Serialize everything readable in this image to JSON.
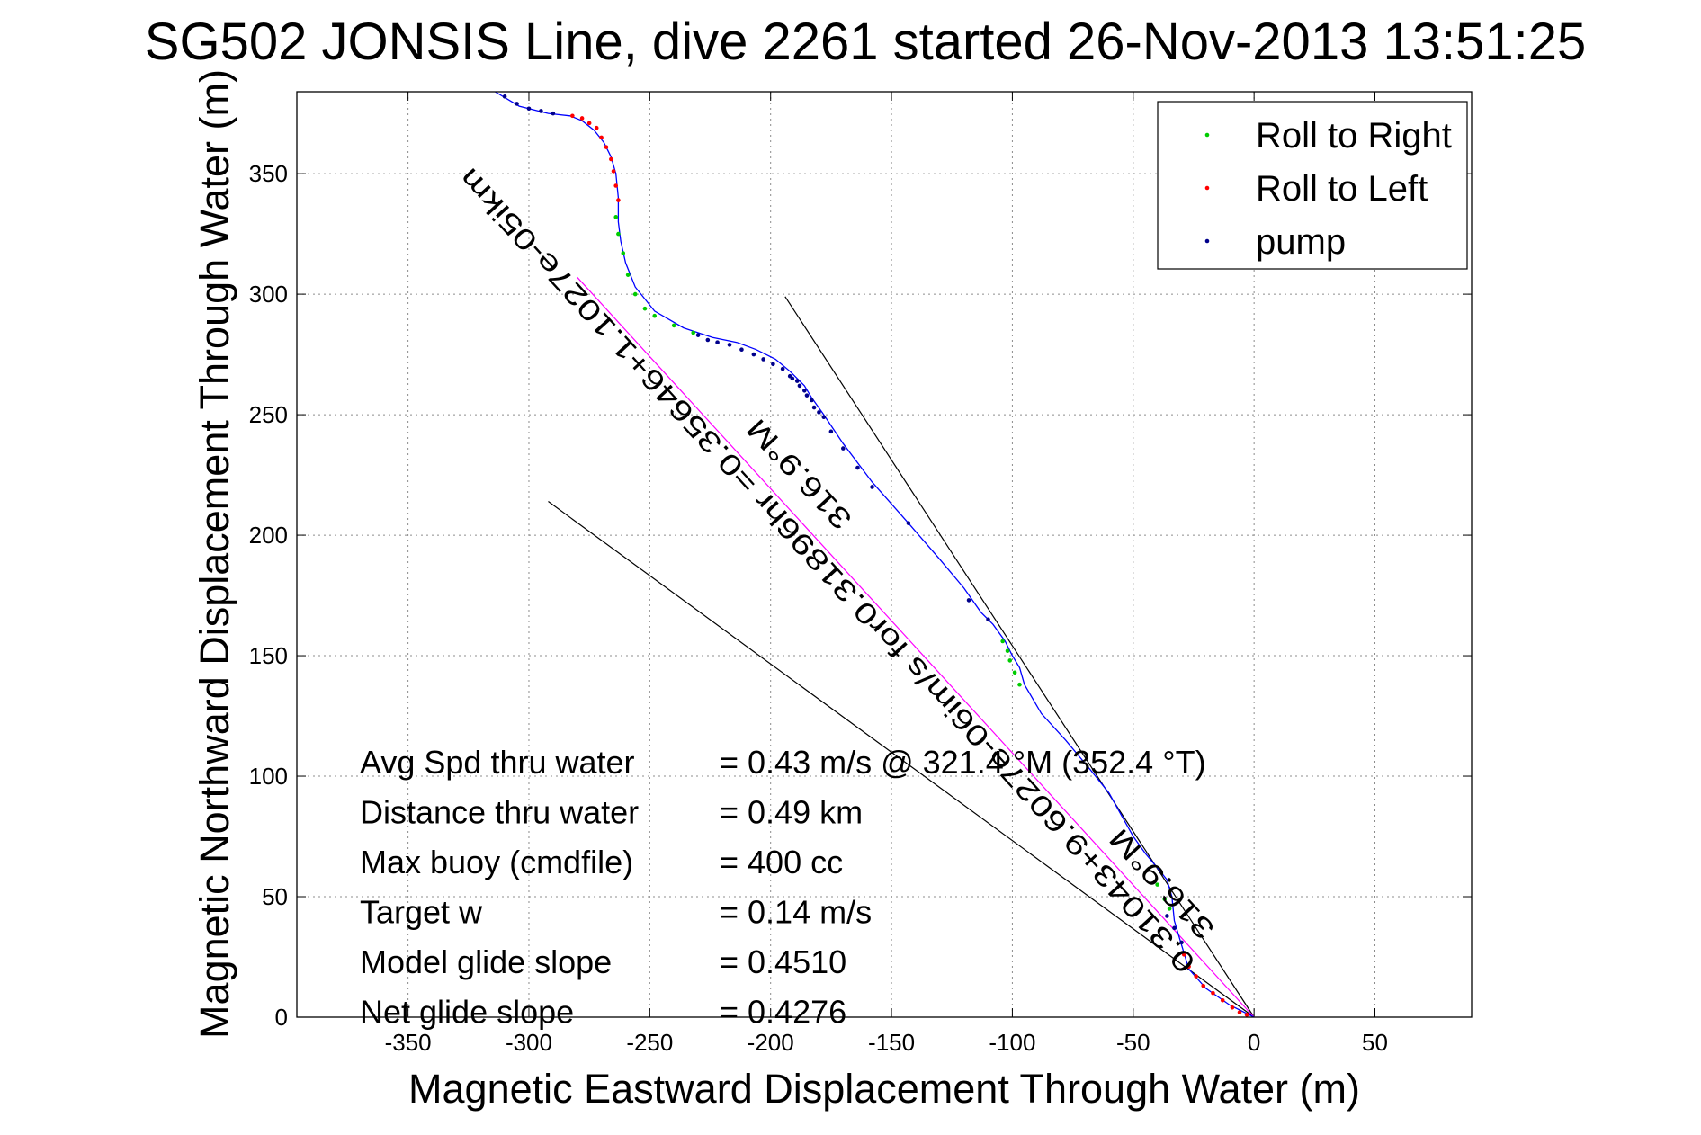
{
  "chart_data": {
    "type": "scatter",
    "title": "SG502 JONSIS Line, dive 2261 started 26-Nov-2013 13:51:25",
    "xlabel": "Magnetic Eastward Displacement Through Water (m)",
    "ylabel": "Magnetic Northward Displacement Through Water (m)",
    "xlim": [
      -396,
      90
    ],
    "ylim": [
      0,
      384
    ],
    "xticks": [
      -350,
      -300,
      -250,
      -200,
      -150,
      -100,
      -50,
      0,
      50
    ],
    "yticks": [
      0,
      50,
      100,
      150,
      200,
      250,
      300,
      350
    ],
    "grid": true,
    "legend_position": "top-right",
    "legend": [
      {
        "label": "Roll to Right",
        "color": "#00cc00"
      },
      {
        "label": "Roll to Left",
        "color": "#ff0000"
      },
      {
        "label": "pump",
        "color": "#00008b"
      }
    ],
    "track": {
      "color": "#0000ff",
      "x": [
        0,
        -10,
        -20,
        -27,
        -30,
        -33,
        -34,
        -36,
        -40,
        -45,
        -50,
        -55,
        -60,
        -68,
        -78,
        -88,
        -95,
        -97,
        -100,
        -103,
        -108,
        -113,
        -120,
        -130,
        -143,
        -158,
        -170,
        -178,
        -183,
        -186,
        -192,
        -198,
        -206,
        -214,
        -224,
        -236,
        -248,
        -256,
        -260,
        -262,
        -263,
        -263,
        -264,
        -266,
        -269,
        -273,
        -278,
        -283,
        -292,
        -304,
        -314
      ],
      "y": [
        0,
        5,
        12,
        20,
        30,
        40,
        50,
        57,
        62,
        68,
        75,
        84,
        93,
        103,
        115,
        126,
        138,
        145,
        150,
        156,
        163,
        168,
        178,
        190,
        205,
        222,
        238,
        250,
        257,
        262,
        268,
        273,
        277,
        280,
        282,
        286,
        293,
        303,
        313,
        322,
        330,
        340,
        350,
        357,
        363,
        368,
        372,
        374,
        375,
        378,
        384
      ]
    },
    "series": [
      {
        "name": "Roll to Right",
        "x": [
          -35,
          -37,
          -40,
          -97,
          -99,
          -101,
          -102,
          -104,
          -252,
          -256,
          -259,
          -261,
          -263,
          -264,
          -232,
          -240,
          -248
        ],
        "y": [
          45,
          49,
          55,
          138,
          143,
          148,
          152,
          156,
          294,
          300,
          308,
          317,
          325,
          332,
          284,
          287,
          291
        ]
      },
      {
        "name": "Roll to Left",
        "x": [
          -3,
          -6,
          -9,
          -13,
          -17,
          -21,
          -24,
          -27,
          -29,
          -263,
          -264,
          -265,
          -266,
          -268,
          -270,
          -272,
          -275,
          -278,
          -282
        ],
        "y": [
          1,
          2,
          4,
          7,
          10,
          13,
          17,
          21,
          26,
          339,
          345,
          351,
          356,
          361,
          365,
          369,
          371,
          373,
          374
        ]
      },
      {
        "name": "pump",
        "x": [
          -30,
          -33,
          -36,
          -110,
          -118,
          -143,
          -158,
          -164,
          -170,
          -175,
          -178,
          -180,
          -183,
          -186,
          -189,
          -192,
          -195,
          -199,
          -203,
          -207,
          -212,
          -217,
          -222,
          -226,
          -230,
          -182,
          -185,
          -188,
          -191,
          -290,
          -295,
          -300,
          -305,
          -310
        ],
        "y": [
          31,
          37,
          42,
          165,
          173,
          205,
          220,
          228,
          236,
          243,
          249,
          251,
          256,
          260,
          264,
          266,
          269,
          271,
          273,
          275,
          277,
          279,
          280,
          281,
          283,
          253,
          258,
          262,
          265,
          375,
          376,
          377,
          379,
          382
        ]
      }
    ],
    "reference_lines": [
      {
        "color": "#000000",
        "x": [
          -292,
          0
        ],
        "y": [
          214,
          0
        ]
      },
      {
        "color": "#000000",
        "x": [
          -194,
          0
        ],
        "y": [
          299,
          0
        ]
      },
      {
        "color": "#ff00ff",
        "x": [
          -280,
          0
        ],
        "y": [
          307,
          0
        ]
      }
    ],
    "line_annotations": [
      {
        "text": "0.31043+9.6027e-06im/s for0.31896hr =0.35646+1.1027e-05ikm",
        "x": -327,
        "y": 350,
        "x_end": -27,
        "y_end": 20
      },
      {
        "text": "316.9°M",
        "x": -208,
        "y": 246,
        "x_end": -169,
        "y_end": 204
      },
      {
        "text": "316.9°M",
        "x": -58,
        "y": 76,
        "x_end": -19,
        "y_end": 34
      }
    ],
    "stats": [
      {
        "label": "Avg Spd thru water",
        "value": "=  0.43 m/s @ 321.4 °M (352.4 °T)"
      },
      {
        "label": "Distance thru water",
        "value": "=  0.49 km"
      },
      {
        "label": "Max buoy (cmdfile)",
        "value": "= 400 cc"
      },
      {
        "label": "Target w",
        "value": "= 0.14 m/s"
      },
      {
        "label": "Model glide slope",
        "value": "= 0.4510"
      },
      {
        "label": "Net glide slope",
        "value": "= 0.4276"
      }
    ]
  }
}
